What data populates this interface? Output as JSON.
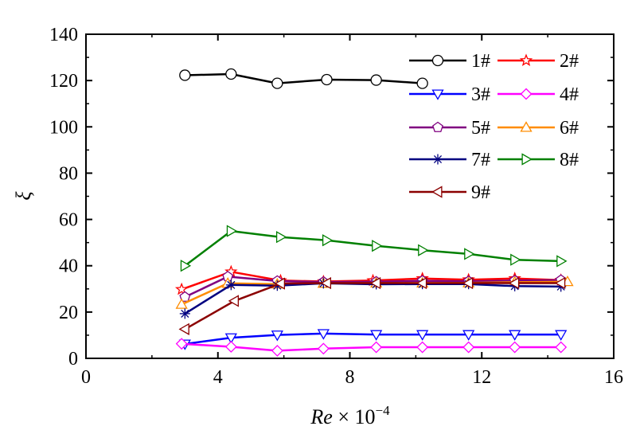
{
  "chart_data": {
    "type": "line",
    "title": "",
    "xlabel_main": "Re",
    "xlabel_times": " × 10",
    "xlabel_exponent": "−4",
    "ylabel": "ξ",
    "xlim": [
      0,
      16
    ],
    "ylim": [
      0,
      140
    ],
    "xticks": [
      0,
      4,
      8,
      12,
      16
    ],
    "yticks": [
      0,
      20,
      40,
      60,
      80,
      100,
      120,
      140
    ],
    "grid": false,
    "legend_position": "top-right",
    "series": [
      {
        "name": "1#",
        "color": "#000000",
        "marker": "circle",
        "points": [
          [
            3.0,
            122.3
          ],
          [
            4.4,
            122.8
          ],
          [
            5.8,
            118.8
          ],
          [
            7.3,
            120.4
          ],
          [
            8.8,
            120.2
          ],
          [
            10.2,
            118.8
          ]
        ]
      },
      {
        "name": "2#",
        "color": "#ff0000",
        "marker": "star",
        "points": [
          [
            2.9,
            29.8
          ],
          [
            4.4,
            37.4
          ],
          [
            5.9,
            33.6
          ],
          [
            7.2,
            33.2
          ],
          [
            8.7,
            33.6
          ],
          [
            10.2,
            34.5
          ],
          [
            11.6,
            34.0
          ],
          [
            13.0,
            34.5
          ],
          [
            14.4,
            33.8
          ]
        ]
      },
      {
        "name": "3#",
        "color": "#0000ff",
        "marker": "triangle-down",
        "points": [
          [
            3.0,
            6.2
          ],
          [
            4.4,
            8.9
          ],
          [
            5.8,
            10.1
          ],
          [
            7.2,
            10.7
          ],
          [
            8.8,
            10.3
          ],
          [
            10.2,
            10.3
          ],
          [
            11.6,
            10.3
          ],
          [
            13.0,
            10.3
          ],
          [
            14.4,
            10.3
          ]
        ]
      },
      {
        "name": "4#",
        "color": "#ff00ff",
        "marker": "diamond",
        "points": [
          [
            2.9,
            6.3
          ],
          [
            4.4,
            5.0
          ],
          [
            5.8,
            3.3
          ],
          [
            7.2,
            4.2
          ],
          [
            8.8,
            4.8
          ],
          [
            10.2,
            4.8
          ],
          [
            11.6,
            4.8
          ],
          [
            13.0,
            4.8
          ],
          [
            14.4,
            4.8
          ]
        ]
      },
      {
        "name": "5#",
        "color": "#800080",
        "marker": "pentagon",
        "points": [
          [
            3.0,
            26.5
          ],
          [
            4.3,
            35.3
          ],
          [
            5.8,
            33.4
          ],
          [
            7.2,
            33.0
          ],
          [
            8.8,
            33.1
          ],
          [
            10.2,
            33.5
          ],
          [
            11.6,
            33.3
          ],
          [
            13.0,
            33.6
          ],
          [
            14.4,
            33.8
          ]
        ]
      },
      {
        "name": "6#",
        "color": "#ff8c00",
        "marker": "triangle-up",
        "points": [
          [
            2.9,
            23.3
          ],
          [
            4.3,
            32.4
          ],
          [
            5.8,
            32.1
          ],
          [
            7.2,
            32.4
          ],
          [
            8.8,
            32.5
          ],
          [
            10.2,
            32.5
          ],
          [
            11.6,
            32.6
          ],
          [
            13.0,
            32.9
          ],
          [
            14.6,
            33.1
          ]
        ]
      },
      {
        "name": "7#",
        "color": "#000080",
        "marker": "asterisk",
        "points": [
          [
            3.0,
            19.3
          ],
          [
            4.4,
            31.7
          ],
          [
            5.8,
            31.4
          ],
          [
            7.2,
            32.4
          ],
          [
            8.8,
            32.0
          ],
          [
            10.2,
            32.1
          ],
          [
            11.6,
            32.1
          ],
          [
            13.0,
            31.2
          ],
          [
            14.4,
            31.0
          ]
        ]
      },
      {
        "name": "8#",
        "color": "#008000",
        "marker": "triangle-right",
        "points": [
          [
            3.0,
            40.0
          ],
          [
            4.4,
            55.0
          ],
          [
            5.9,
            52.4
          ],
          [
            7.3,
            51.0
          ],
          [
            8.8,
            48.6
          ],
          [
            10.2,
            46.7
          ],
          [
            11.6,
            45.1
          ],
          [
            13.0,
            42.6
          ],
          [
            14.4,
            42.0
          ]
        ]
      },
      {
        "name": "9#",
        "color": "#8b0000",
        "marker": "triangle-left",
        "points": [
          [
            3.0,
            12.6
          ],
          [
            4.5,
            24.8
          ],
          [
            5.9,
            32.3
          ],
          [
            7.3,
            32.5
          ],
          [
            8.8,
            32.5
          ],
          [
            10.2,
            32.5
          ],
          [
            11.6,
            32.5
          ],
          [
            13.0,
            32.5
          ],
          [
            14.4,
            32.5
          ]
        ]
      }
    ]
  }
}
